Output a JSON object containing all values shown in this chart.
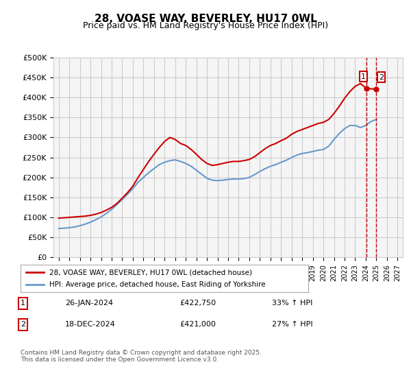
{
  "title": "28, VOASE WAY, BEVERLEY, HU17 0WL",
  "subtitle": "Price paid vs. HM Land Registry's House Price Index (HPI)",
  "legend_label_red": "28, VOASE WAY, BEVERLEY, HU17 0WL (detached house)",
  "legend_label_blue": "HPI: Average price, detached house, East Riding of Yorkshire",
  "annotation1_num": "1",
  "annotation1_date": "26-JAN-2024",
  "annotation1_price": "£422,750",
  "annotation1_hpi": "33% ↑ HPI",
  "annotation2_num": "2",
  "annotation2_date": "18-DEC-2024",
  "annotation2_price": "£421,000",
  "annotation2_hpi": "27% ↑ HPI",
  "footer": "Contains HM Land Registry data © Crown copyright and database right 2025.\nThis data is licensed under the Open Government Licence v3.0.",
  "ylabel": "",
  "ylim": [
    0,
    500000
  ],
  "yticks": [
    0,
    50000,
    100000,
    150000,
    200000,
    250000,
    300000,
    350000,
    400000,
    450000,
    500000
  ],
  "ytick_labels": [
    "£0",
    "£50K",
    "£100K",
    "£150K",
    "£200K",
    "£250K",
    "£300K",
    "£350K",
    "£400K",
    "£450K",
    "£500K"
  ],
  "xticks": [
    1995,
    1996,
    1997,
    1998,
    1999,
    2000,
    2001,
    2002,
    2003,
    2004,
    2005,
    2006,
    2007,
    2008,
    2009,
    2010,
    2011,
    2012,
    2013,
    2014,
    2015,
    2016,
    2017,
    2018,
    2019,
    2020,
    2021,
    2022,
    2023,
    2024,
    2025,
    2026,
    2027
  ],
  "color_red": "#cc0000",
  "color_blue": "#6699cc",
  "color_grid": "#cccccc",
  "bg_plot": "#f5f5f5",
  "bg_fig": "#ffffff",
  "sale1_x": 2024.07,
  "sale2_x": 2024.96,
  "sale1_y": 422750,
  "sale2_y": 421000,
  "red_x": [
    1995.0,
    1995.5,
    1996.0,
    1996.5,
    1997.0,
    1997.5,
    1998.0,
    1998.5,
    1999.0,
    1999.5,
    2000.0,
    2000.5,
    2001.0,
    2001.5,
    2002.0,
    2002.5,
    2003.0,
    2003.5,
    2004.0,
    2004.5,
    2005.0,
    2005.5,
    2006.0,
    2006.5,
    2007.0,
    2007.5,
    2008.0,
    2008.5,
    2009.0,
    2009.5,
    2010.0,
    2010.5,
    2011.0,
    2011.5,
    2012.0,
    2012.5,
    2013.0,
    2013.5,
    2014.0,
    2014.5,
    2015.0,
    2015.5,
    2016.0,
    2016.5,
    2017.0,
    2017.5,
    2018.0,
    2018.5,
    2019.0,
    2019.5,
    2020.0,
    2020.5,
    2021.0,
    2021.5,
    2022.0,
    2022.5,
    2023.0,
    2023.5,
    2024.07,
    2024.96
  ],
  "red_y": [
    98000,
    99000,
    100000,
    101000,
    102000,
    103000,
    105000,
    108000,
    112000,
    118000,
    125000,
    135000,
    148000,
    162000,
    178000,
    200000,
    220000,
    240000,
    258000,
    275000,
    290000,
    300000,
    295000,
    285000,
    280000,
    270000,
    258000,
    245000,
    235000,
    230000,
    232000,
    235000,
    238000,
    240000,
    240000,
    242000,
    245000,
    252000,
    262000,
    272000,
    280000,
    285000,
    292000,
    298000,
    308000,
    315000,
    320000,
    325000,
    330000,
    335000,
    338000,
    345000,
    360000,
    378000,
    398000,
    415000,
    428000,
    435000,
    422750,
    421000
  ],
  "blue_x": [
    1995.0,
    1995.5,
    1996.0,
    1996.5,
    1997.0,
    1997.5,
    1998.0,
    1998.5,
    1999.0,
    1999.5,
    2000.0,
    2000.5,
    2001.0,
    2001.5,
    2002.0,
    2002.5,
    2003.0,
    2003.5,
    2004.0,
    2004.5,
    2005.0,
    2005.5,
    2006.0,
    2006.5,
    2007.0,
    2007.5,
    2008.0,
    2008.5,
    2009.0,
    2009.5,
    2010.0,
    2010.5,
    2011.0,
    2011.5,
    2012.0,
    2012.5,
    2013.0,
    2013.5,
    2014.0,
    2014.5,
    2015.0,
    2015.5,
    2016.0,
    2016.5,
    2017.0,
    2017.5,
    2018.0,
    2018.5,
    2019.0,
    2019.5,
    2020.0,
    2020.5,
    2021.0,
    2021.5,
    2022.0,
    2022.5,
    2023.0,
    2023.5,
    2024.0,
    2024.5,
    2025.0
  ],
  "blue_y": [
    72000,
    73000,
    74000,
    76000,
    79000,
    83000,
    88000,
    94000,
    101000,
    110000,
    120000,
    132000,
    145000,
    158000,
    172000,
    188000,
    200000,
    212000,
    222000,
    232000,
    238000,
    242000,
    244000,
    240000,
    235000,
    228000,
    218000,
    208000,
    198000,
    193000,
    192000,
    193000,
    195000,
    196000,
    196000,
    197000,
    200000,
    207000,
    215000,
    222000,
    228000,
    232000,
    238000,
    243000,
    250000,
    256000,
    260000,
    262000,
    265000,
    268000,
    270000,
    278000,
    295000,
    310000,
    322000,
    330000,
    330000,
    325000,
    330000,
    340000,
    345000
  ]
}
